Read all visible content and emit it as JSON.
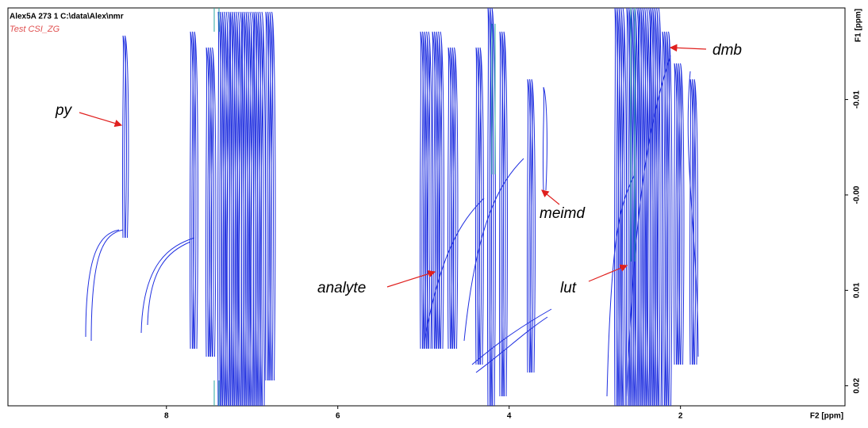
{
  "chart_data": {
    "type": "contour",
    "title": "Alex5A  273  1  C:\\data\\Alex\\nmr",
    "subtitle": "Test CSI_ZG",
    "x_label": "F2 [ppm]",
    "y_label": "F1 [ppm]",
    "xlim": [
      9.85,
      0.08
    ],
    "xticks": [
      8,
      6,
      4,
      2
    ],
    "ylim": [
      -0.0196,
      0.0221
    ],
    "yticks": [
      -0.01,
      {
        "value": 0,
        "label": "-0.00"
      },
      0.01,
      0.02
    ],
    "annotations": [
      "py",
      "dmb",
      "meimd",
      "analyte",
      "lut"
    ]
  }
}
